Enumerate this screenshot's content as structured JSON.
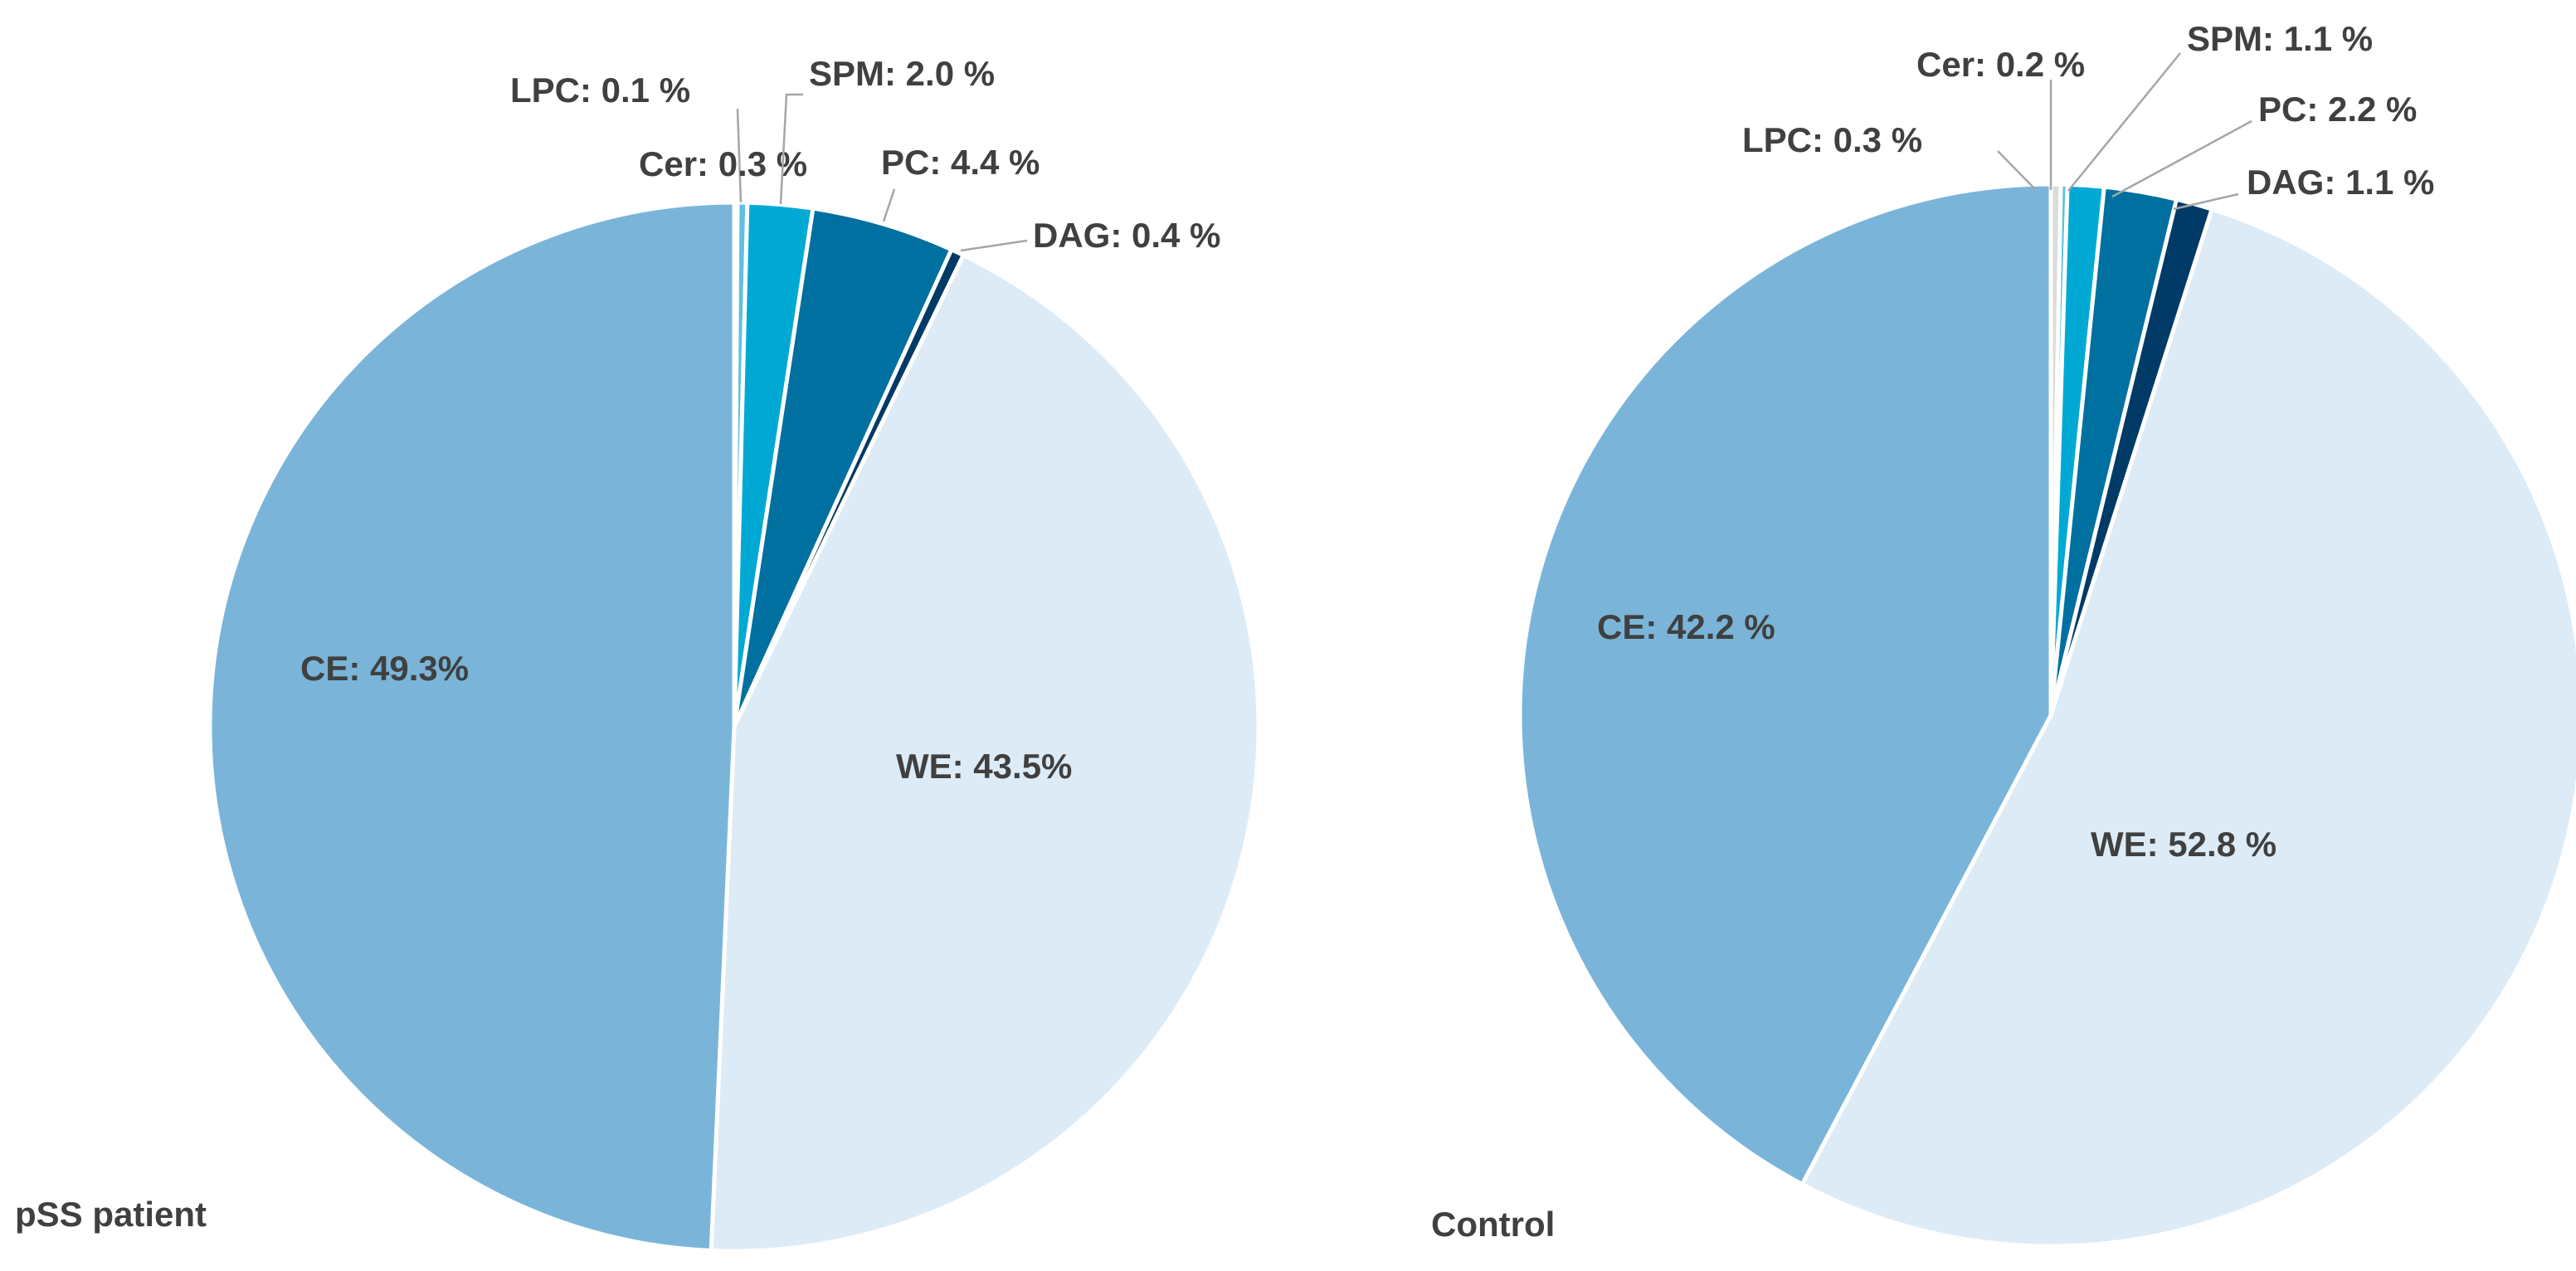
{
  "chart_data": [
    {
      "type": "pie",
      "title": "pSS patient",
      "slices": [
        {
          "name": "LPC",
          "value": 0.1,
          "label": "LPC: 0.1 %",
          "color": "#dcdcdc"
        },
        {
          "name": "Cer",
          "value": 0.3,
          "label": "Cer: 0.3 %",
          "color": "#5fc0e0"
        },
        {
          "name": "SPM",
          "value": 2.0,
          "label": "SPM: 2.0 %",
          "color": "#00a9d4"
        },
        {
          "name": "PC",
          "value": 4.4,
          "label": "PC: 4.4 %",
          "color": "#0070a0"
        },
        {
          "name": "DAG",
          "value": 0.4,
          "label": "DAG: 0.4 %",
          "color": "#003a66"
        },
        {
          "name": "WE",
          "value": 43.5,
          "label": "WE: 43.5%",
          "color": "#ddebf6"
        },
        {
          "name": "CE",
          "value": 49.3,
          "label": "CE: 49.3%",
          "color": "#7ab5d9"
        }
      ]
    },
    {
      "type": "pie",
      "title": "Control",
      "slices": [
        {
          "name": "LPC",
          "value": 0.3,
          "label": "LPC: 0.3 %",
          "color": "#dcdcdc"
        },
        {
          "name": "Cer",
          "value": 0.2,
          "label": "Cer: 0.2 %",
          "color": "#5fc0e0"
        },
        {
          "name": "SPM",
          "value": 1.1,
          "label": "SPM: 1.1 %",
          "color": "#00a9d4"
        },
        {
          "name": "PC",
          "value": 2.2,
          "label": "PC: 2.2 %",
          "color": "#0070a0"
        },
        {
          "name": "DAG",
          "value": 1.1,
          "label": "DAG: 1.1 %",
          "color": "#003a66"
        },
        {
          "name": "WE",
          "value": 52.8,
          "label": "WE: 52.8 %",
          "color": "#ddebf6"
        },
        {
          "name": "CE",
          "value": 42.2,
          "label": "CE: 42.2 %",
          "color": "#7ab5d9"
        }
      ]
    }
  ]
}
